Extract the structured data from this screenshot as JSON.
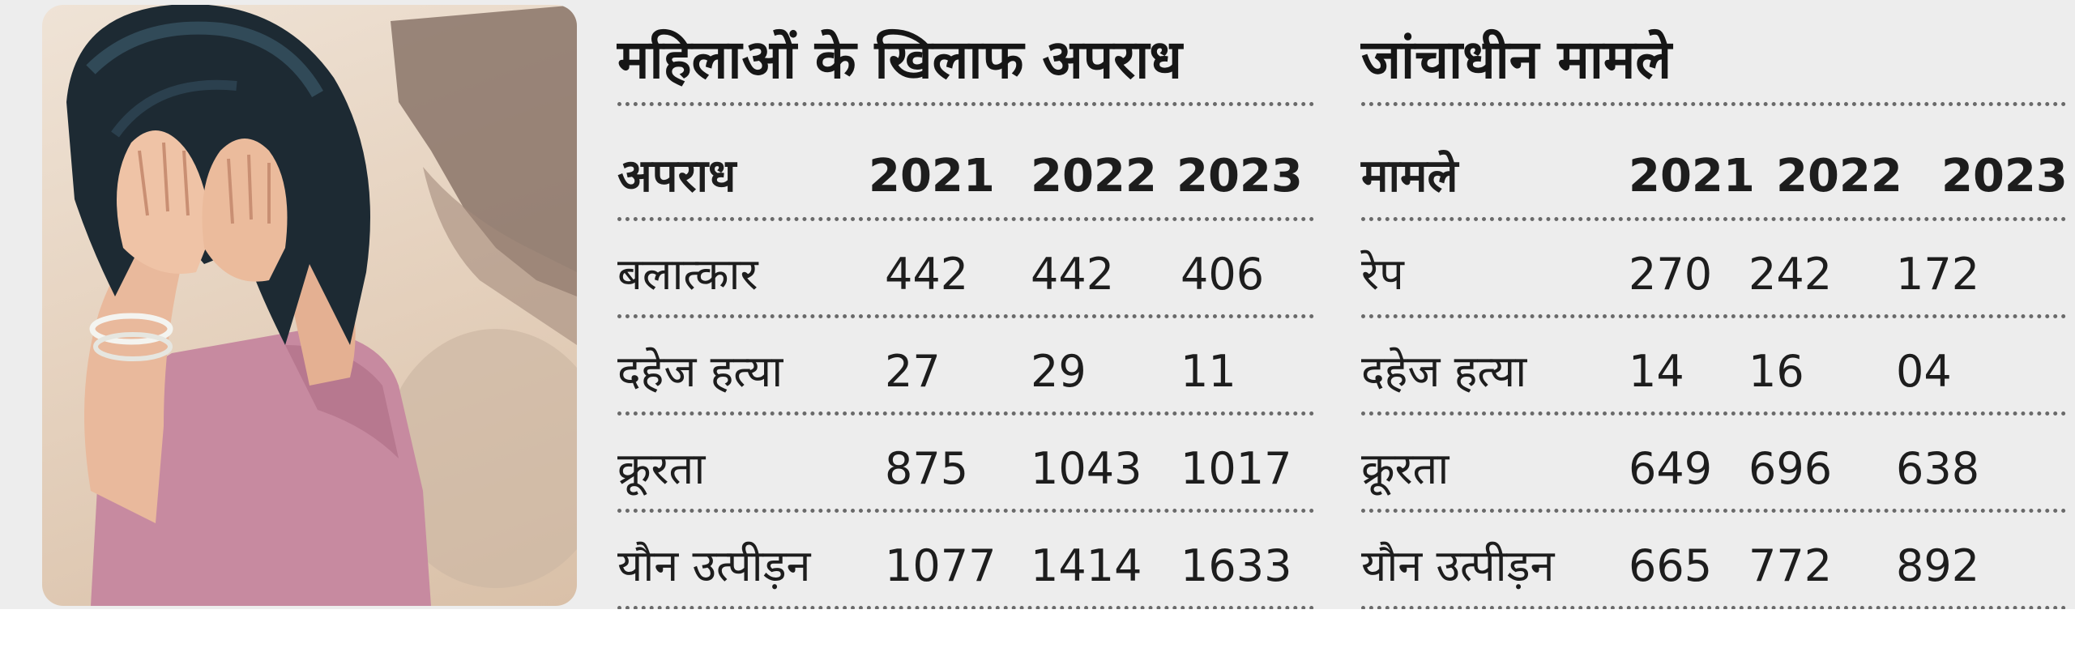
{
  "left_table": {
    "title": "महिलाओं के खिलाफ अपराध",
    "headers": [
      "अपराध",
      "2021",
      "2022",
      "2023"
    ],
    "rows": [
      [
        "बलात्कार",
        "442",
        "442",
        "406"
      ],
      [
        "दहेज हत्या",
        "27",
        "29",
        "11"
      ],
      [
        "क्रूरता",
        "875",
        "1043",
        "1017"
      ],
      [
        "यौन उत्पीड़न",
        "1077",
        "1414",
        "1633"
      ]
    ]
  },
  "right_table": {
    "title": "जांचाधीन मामले",
    "headers": [
      "मामले",
      "2021",
      "2022",
      "2023"
    ],
    "rows": [
      [
        "रेप",
        "270",
        "242",
        "172"
      ],
      [
        "दहेज हत्या",
        "14",
        "16",
        "04"
      ],
      [
        "क्रूरता",
        "649",
        "696",
        "638"
      ],
      [
        "यौन उत्पीड़न",
        "665",
        "772",
        "892"
      ]
    ]
  },
  "colors": {
    "card_background": "#ededed",
    "text": "#1a1a1a",
    "rule": "#6a6a6a"
  }
}
